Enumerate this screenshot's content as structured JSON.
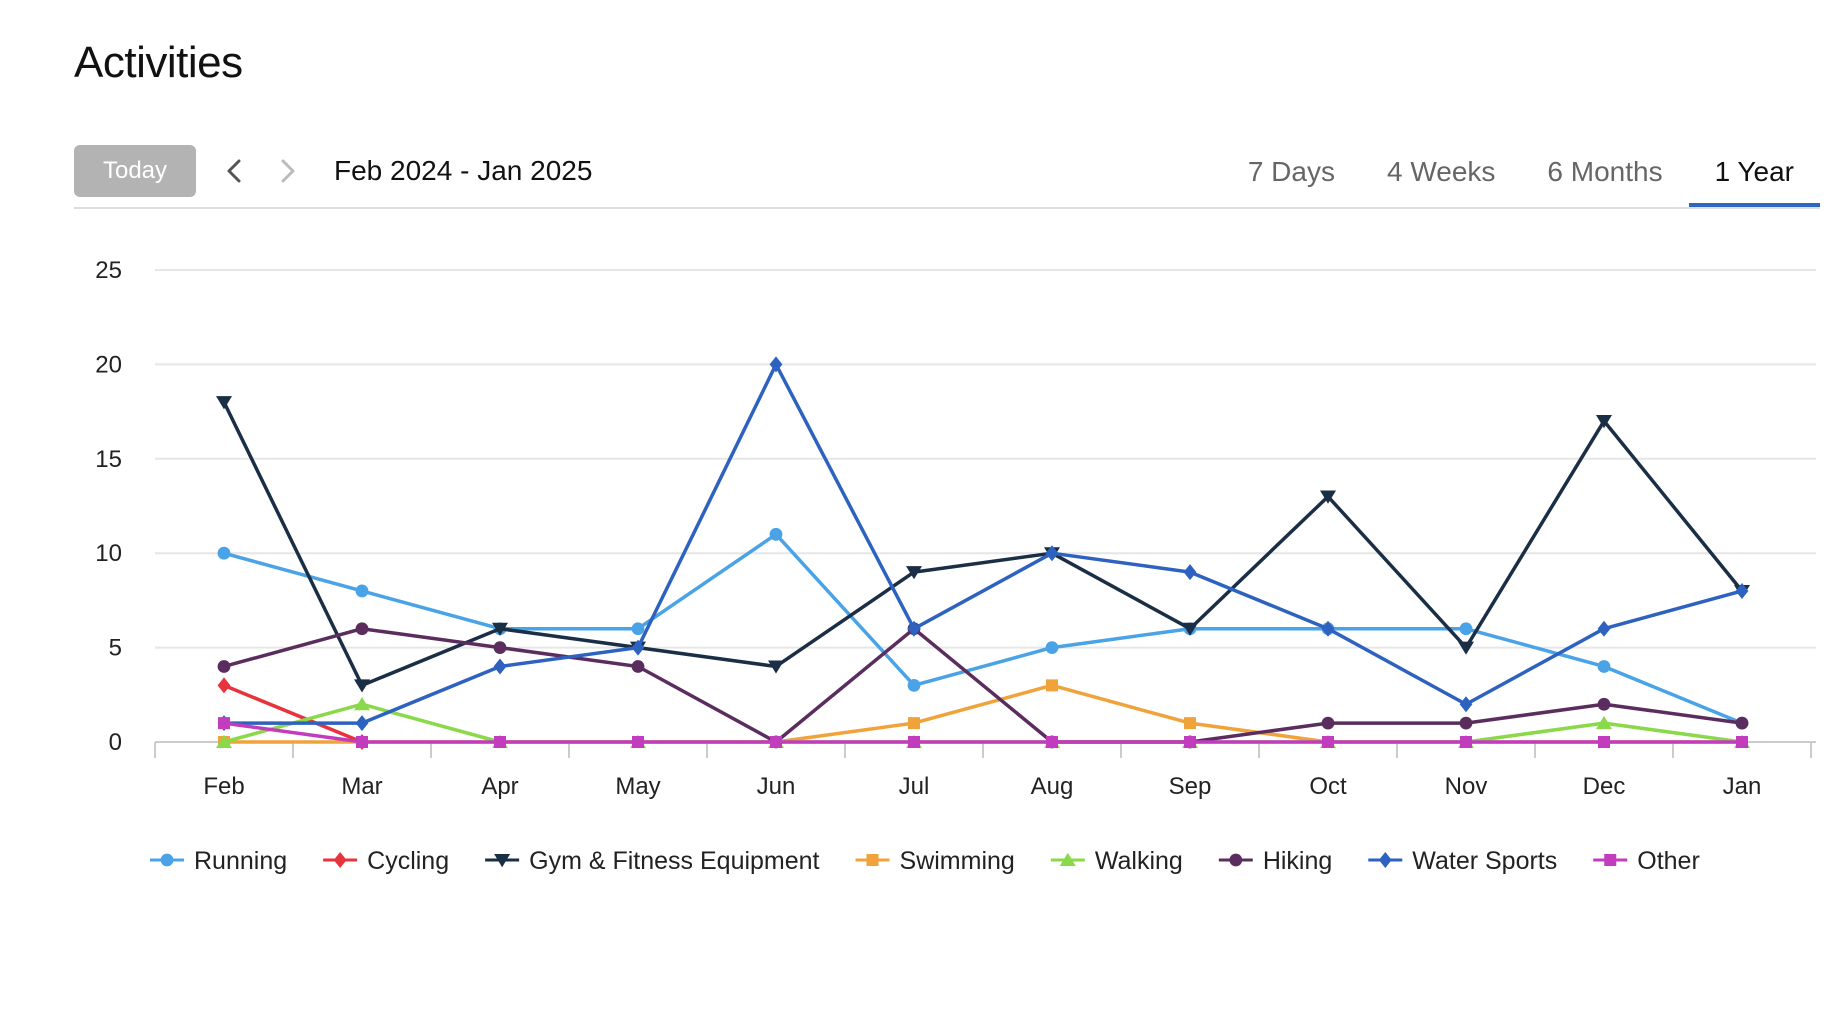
{
  "page_title": "Activities",
  "toolbar": {
    "today_label": "Today",
    "prev_icon": "chevron-left-icon",
    "next_icon": "chevron-right-icon",
    "date_range": "Feb 2024 - Jan 2025",
    "tabs": [
      {
        "label": "7 Days",
        "active": false
      },
      {
        "label": "4 Weeks",
        "active": false
      },
      {
        "label": "6 Months",
        "active": false
      },
      {
        "label": "1 Year",
        "active": true
      }
    ],
    "accent_color": "#2f66c0"
  },
  "chart_data": {
    "type": "line",
    "x": [
      "Feb",
      "Mar",
      "Apr",
      "May",
      "Jun",
      "Jul",
      "Aug",
      "Sep",
      "Oct",
      "Nov",
      "Dec",
      "Jan"
    ],
    "ylim": [
      0,
      25
    ],
    "yticks": [
      0,
      5,
      10,
      15,
      20,
      25
    ],
    "grid": true,
    "legend_position": "bottom",
    "series": [
      {
        "name": "Running",
        "color": "#4aa3e6",
        "marker": "circle",
        "values": [
          10,
          8,
          6,
          6,
          11,
          3,
          5,
          6,
          6,
          6,
          4,
          1
        ]
      },
      {
        "name": "Cycling",
        "color": "#e8323c",
        "marker": "diamond",
        "values": [
          3,
          0,
          null,
          null,
          null,
          null,
          null,
          null,
          null,
          null,
          null,
          null
        ]
      },
      {
        "name": "Gym & Fitness Equipment",
        "color": "#1a2e45",
        "marker": "triangle-down",
        "values": [
          18,
          3,
          6,
          5,
          4,
          9,
          10,
          6,
          13,
          5,
          17,
          8
        ]
      },
      {
        "name": "Swimming",
        "color": "#f0a33a",
        "marker": "square",
        "values": [
          0,
          0,
          0,
          0,
          0,
          1,
          3,
          1,
          0,
          0,
          0,
          0
        ]
      },
      {
        "name": "Walking",
        "color": "#8ad94a",
        "marker": "triangle-up",
        "values": [
          0,
          2,
          0,
          0,
          0,
          0,
          0,
          0,
          0,
          0,
          1,
          0
        ]
      },
      {
        "name": "Hiking",
        "color": "#5a2d5e",
        "marker": "circle",
        "values": [
          4,
          6,
          5,
          4,
          0,
          6,
          0,
          0,
          1,
          1,
          2,
          1
        ]
      },
      {
        "name": "Water Sports",
        "color": "#2d62c0",
        "marker": "diamond",
        "values": [
          1,
          1,
          4,
          5,
          20,
          6,
          10,
          9,
          6,
          2,
          6,
          8
        ]
      },
      {
        "name": "Other",
        "color": "#c13dbd",
        "marker": "square",
        "values": [
          1,
          0,
          0,
          0,
          0,
          0,
          0,
          0,
          0,
          0,
          0,
          0
        ]
      }
    ]
  }
}
